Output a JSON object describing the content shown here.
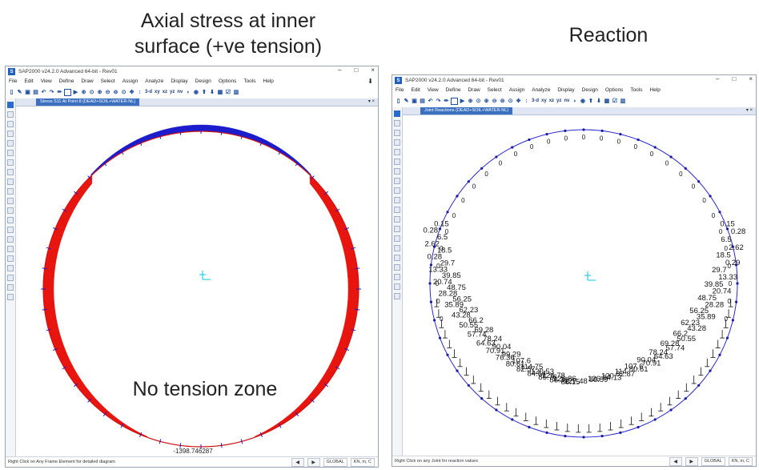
{
  "captions": {
    "left_line1": "Axial stress at inner",
    "left_line2": "surface (+ve tension)",
    "right": "Reaction"
  },
  "app": {
    "title": "SAP2000 v24.2.0 Advanced 64-bit - Rev01",
    "logo_text": "S",
    "window_controls": {
      "minimize": "–",
      "maximize": "□",
      "close": "×"
    },
    "menu": [
      "File",
      "Edit",
      "View",
      "Define",
      "Draw",
      "Select",
      "Assign",
      "Analyze",
      "Display",
      "Design",
      "Options",
      "Tools",
      "Help"
    ]
  },
  "toolbar_text_buttons": [
    "3-d",
    "xy",
    "xz",
    "yz",
    "nv"
  ],
  "left_window": {
    "tab_title": "Stress S11 At Point 8 (DEAD+SOIL+WATER-NL)",
    "annotation": "No tension zone",
    "bottom_value": "-1398.746287",
    "status_message": "Right Click on Any Frame Element for detailed diagram",
    "coord_system": "GLOBAL",
    "units": "KN, m, C",
    "colors": {
      "compression": "#1c1ccc",
      "tension": "#e8150f",
      "ring": "#d01212"
    }
  },
  "right_window": {
    "tab_title": "Joint Reactions (DEAD+SOIL+WATER-NL)",
    "status_message": "Right Click on any Joint for reaction values",
    "coord_system": "GLOBAL",
    "units": "KN, m, C",
    "top_zero_label": "0",
    "reaction_labels_left": [
      "0.15",
      "0.28",
      "6.5",
      "2.62",
      "18.5",
      "0.28",
      "29.7",
      "13.33",
      "39.85",
      "20.74",
      "48.75",
      "28.28",
      "56.25",
      "35.89",
      "62.23",
      "43.28",
      "66.2",
      "50.55",
      "69.28",
      "57.74",
      "78.24",
      "64.63",
      "90.04",
      "70.91",
      "99.29",
      "76.36",
      "107.6",
      "80.61",
      "114.75",
      "82.57",
      "120.53",
      "84.64",
      "124.78",
      "85.76",
      "126.86",
      "86.39",
      "127.48",
      "86.15"
    ],
    "reaction_labels_right": [
      "0.15",
      "0.28",
      "6.5",
      "2.62",
      "18.5",
      "0.29",
      "29.7",
      "13.33",
      "39.85",
      "20.74",
      "48.75",
      "28.28",
      "56.25",
      "35.89",
      "62.23",
      "43.28",
      "66.2",
      "50.55",
      "69.28",
      "57.74",
      "78.24",
      "64.63",
      "90.04",
      "70.91",
      "107.6",
      "80.61",
      "114",
      "82.87",
      "120",
      "84.13",
      "126",
      "86.59"
    ]
  }
}
